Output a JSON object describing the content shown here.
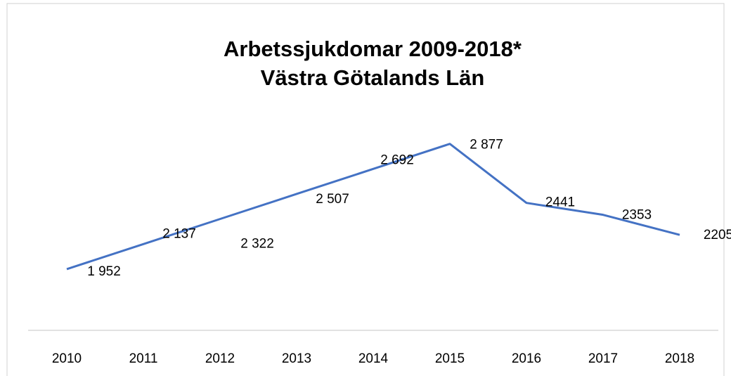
{
  "chart_data": {
    "type": "line",
    "title": "Arbetssjukdomar 2009-2018*",
    "subtitle": "Västra Götalands Län",
    "categories": [
      "2010",
      "2011",
      "2012",
      "2013",
      "2014",
      "2015",
      "2016",
      "2017",
      "2018"
    ],
    "series": [
      {
        "name": "Arbetssjukdomar",
        "color": "#4472c4",
        "values": [
          1952,
          2137,
          2322,
          2507,
          2692,
          2877,
          2441,
          2353,
          2205
        ],
        "value_labels": [
          "1 952",
          "2 137",
          "2 322",
          "2 507",
          "2 692",
          "2 877",
          "2441",
          "2353",
          "2205"
        ]
      }
    ],
    "ylim": [
      1500,
      3000
    ]
  }
}
